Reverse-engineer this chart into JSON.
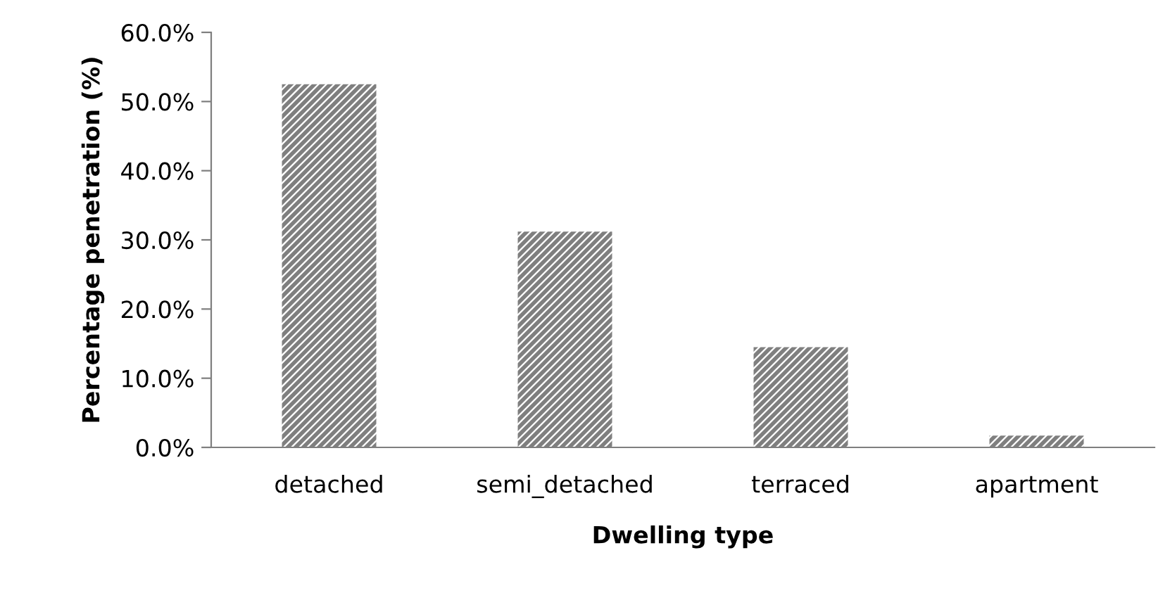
{
  "chart_data": {
    "type": "bar",
    "categories": [
      "detached",
      "semi_detached",
      "terraced",
      "apartment"
    ],
    "values": [
      52.5,
      31.2,
      14.5,
      1.7
    ],
    "color": "#7f7f7f",
    "xlabel": "Dwelling type",
    "ylabel": "Percentage penetration (%)",
    "ylim": [
      0,
      60
    ],
    "yticks": [
      {
        "value": 0,
        "label": "0.0%"
      },
      {
        "value": 10,
        "label": "10.0%"
      },
      {
        "value": 20,
        "label": "20.0%"
      },
      {
        "value": 30,
        "label": "30.0%"
      },
      {
        "value": 40,
        "label": "40.0%"
      },
      {
        "value": 50,
        "label": "50.0%"
      },
      {
        "value": 60,
        "label": "60.0%"
      }
    ],
    "grid": false,
    "legend": false
  }
}
